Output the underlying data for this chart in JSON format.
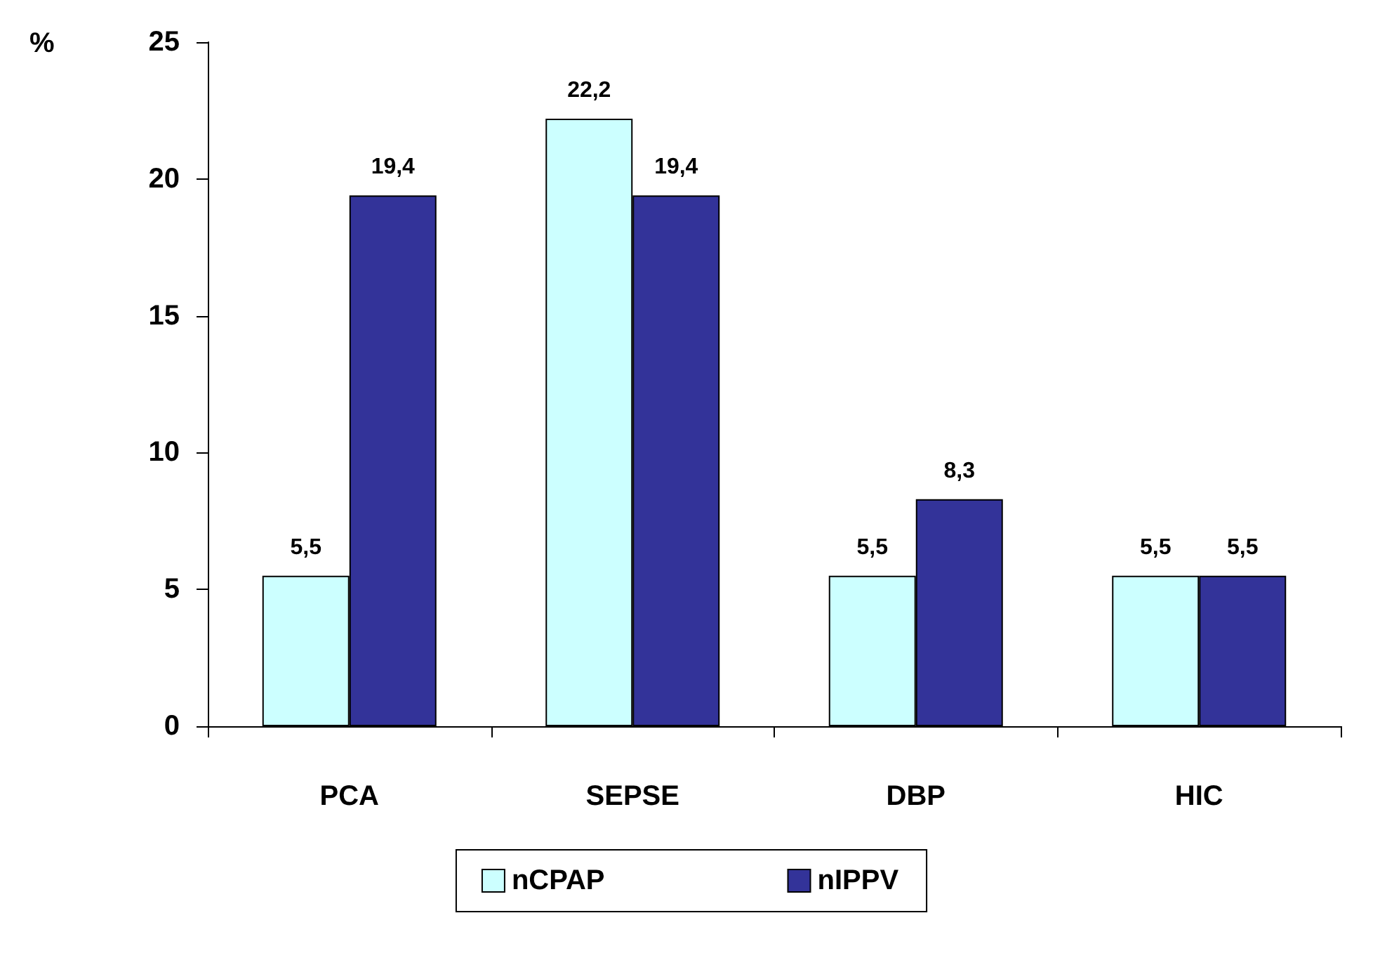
{
  "chart_data": {
    "type": "bar",
    "ylabel": "%",
    "categories": [
      "PCA",
      "SEPSE",
      "DBP",
      "HIC"
    ],
    "series": [
      {
        "name": "nCPAP",
        "color": "#ccffff",
        "values": [
          5.5,
          22.2,
          5.5,
          5.5
        ],
        "value_labels": [
          "5,5",
          "22,2",
          "5,5",
          "5,5"
        ]
      },
      {
        "name": "nIPPV",
        "color": "#333399",
        "values": [
          19.4,
          19.4,
          8.3,
          5.5
        ],
        "value_labels": [
          "19,4",
          "19,4",
          "8,3",
          "5,5"
        ]
      }
    ],
    "ylim": [
      0,
      25
    ],
    "yticks": [
      0,
      5,
      10,
      15,
      20,
      25
    ],
    "grid": false,
    "legend": "bottom"
  }
}
